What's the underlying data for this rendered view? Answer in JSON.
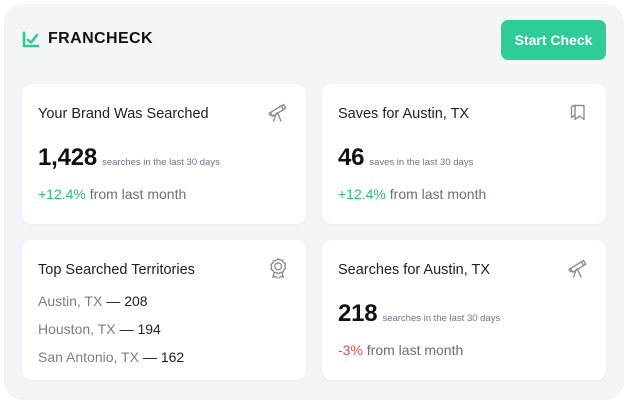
{
  "app": {
    "name": "FRANCHECK",
    "cta_label": "Start Check",
    "accent_color": "#2ecc98"
  },
  "cards": {
    "brand_searched": {
      "title": "Your Brand Was Searched",
      "icon": "telescope-icon",
      "value": "1,428",
      "subtitle": "searches in the last 30 days",
      "change": "+12.4%",
      "change_suffix": "from last month"
    },
    "saves": {
      "title": "Saves for Austin, TX",
      "icon": "bookmark-icon",
      "value": "46",
      "subtitle": "saves in the last 30 days",
      "change": "+12.4%",
      "change_suffix": "from last month"
    },
    "top_territories": {
      "title": "Top Searched Territories",
      "icon": "award-icon",
      "items": [
        {
          "name": "Austin, TX",
          "count": "— 208"
        },
        {
          "name": "Houston, TX",
          "count": "— 194"
        },
        {
          "name": "San Antonio, TX",
          "count": "— 162"
        }
      ]
    },
    "searches_austin": {
      "title": "Searches for Austin, TX",
      "icon": "telescope-icon",
      "value": "218",
      "subtitle": "searches in the last 30 days",
      "change": "-3%",
      "change_suffix": "from last month"
    }
  },
  "colors": {
    "positive": "#2ebc6f",
    "negative": "#e0524a"
  }
}
